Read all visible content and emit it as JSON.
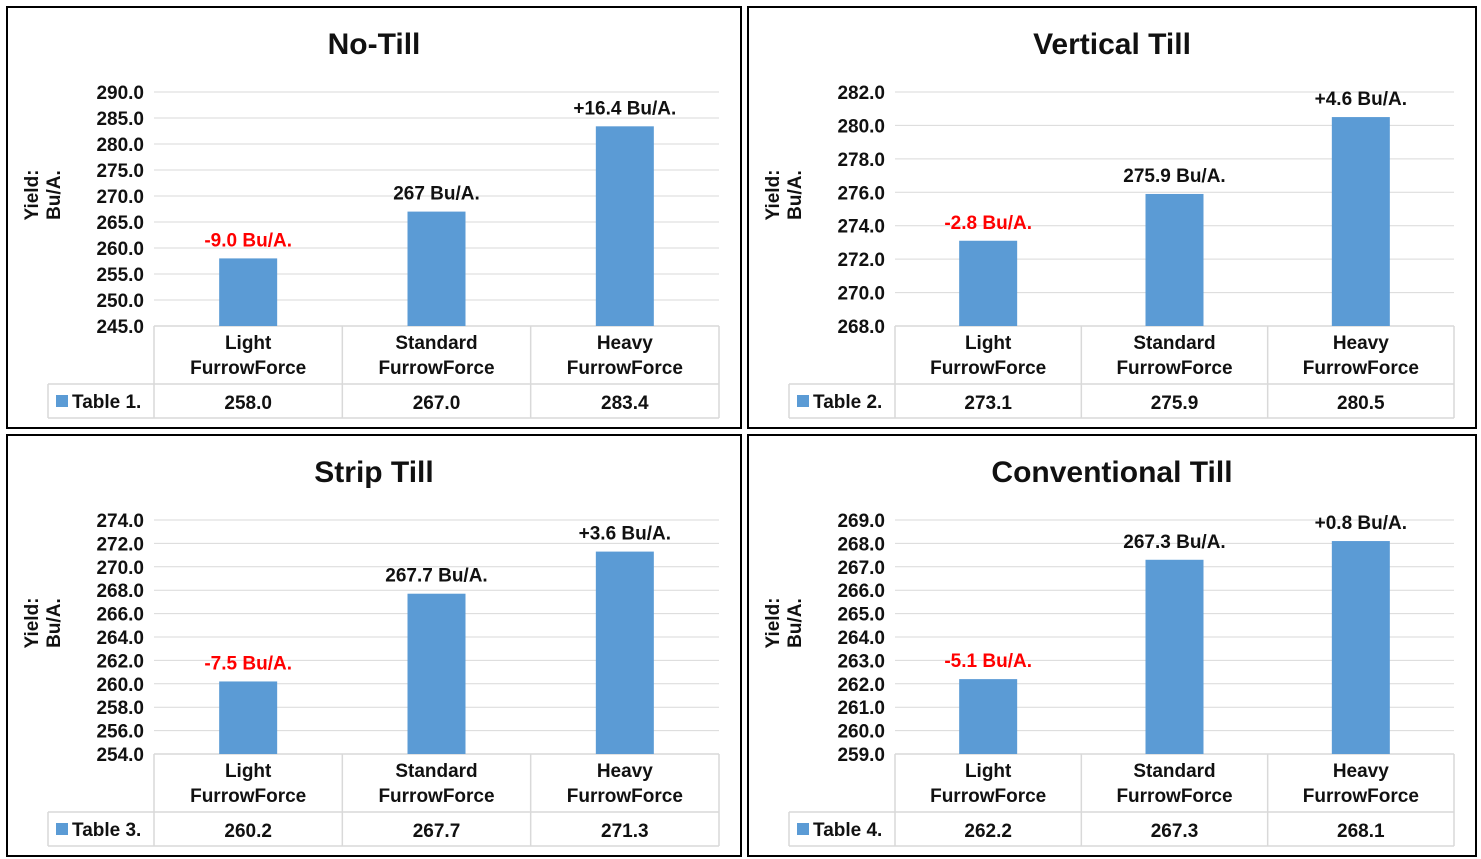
{
  "colors": {
    "bar": "#5b9bd5",
    "grid": "#d9d9d9",
    "negative_label": "#ff0000",
    "text": "#111111"
  },
  "chart_data": [
    {
      "type": "bar",
      "title": "No-Till",
      "ylabel": "Yield: Bu/A.",
      "categories": [
        [
          "Light",
          "FurrowForce"
        ],
        [
          "Standard",
          "FurrowForce"
        ],
        [
          "Heavy",
          "FurrowForce"
        ]
      ],
      "series": [
        {
          "name": "Table 1.",
          "values": [
            258.0,
            267.0,
            283.4
          ]
        }
      ],
      "table_values": [
        "258.0",
        "267.0",
        "283.4"
      ],
      "data_labels": [
        "-9.0 Bu/A.",
        "267 Bu/A.",
        "+16.4 Bu/A."
      ],
      "ylim": [
        245.0,
        290.0
      ],
      "yticks": [
        "245.0",
        "250.0",
        "255.0",
        "260.0",
        "265.0",
        "270.0",
        "275.0",
        "280.0",
        "285.0",
        "290.0"
      ],
      "grid": true,
      "legend": "data-table"
    },
    {
      "type": "bar",
      "title": "Vertical Till",
      "ylabel": "Yield: Bu/A.",
      "categories": [
        [
          "Light",
          "FurrowForce"
        ],
        [
          "Standard",
          "FurrowForce"
        ],
        [
          "Heavy",
          "FurrowForce"
        ]
      ],
      "series": [
        {
          "name": "Table 2.",
          "values": [
            273.1,
            275.9,
            280.5
          ]
        }
      ],
      "table_values": [
        "273.1",
        "275.9",
        "280.5"
      ],
      "data_labels": [
        "-2.8 Bu/A.",
        "275.9 Bu/A.",
        "+4.6 Bu/A."
      ],
      "ylim": [
        268.0,
        282.0
      ],
      "yticks": [
        "268.0",
        "270.0",
        "272.0",
        "274.0",
        "276.0",
        "278.0",
        "280.0",
        "282.0"
      ],
      "grid": true,
      "legend": "data-table"
    },
    {
      "type": "bar",
      "title": "Strip Till",
      "ylabel": "Yield: Bu/A.",
      "categories": [
        [
          "Light",
          "FurrowForce"
        ],
        [
          "Standard",
          "FurrowForce"
        ],
        [
          "Heavy",
          "FurrowForce"
        ]
      ],
      "series": [
        {
          "name": "Table 3.",
          "values": [
            260.2,
            267.7,
            271.3
          ]
        }
      ],
      "table_values": [
        "260.2",
        "267.7",
        "271.3"
      ],
      "data_labels": [
        "-7.5 Bu/A.",
        "267.7 Bu/A.",
        "+3.6 Bu/A."
      ],
      "ylim": [
        254.0,
        274.0
      ],
      "yticks": [
        "254.0",
        "256.0",
        "258.0",
        "260.0",
        "262.0",
        "264.0",
        "266.0",
        "268.0",
        "270.0",
        "272.0",
        "274.0"
      ],
      "grid": true,
      "legend": "data-table"
    },
    {
      "type": "bar",
      "title": "Conventional Till",
      "ylabel": "Yield: Bu/A.",
      "categories": [
        [
          "Light",
          "FurrowForce"
        ],
        [
          "Standard",
          "FurrowForce"
        ],
        [
          "Heavy",
          "FurrowForce"
        ]
      ],
      "series": [
        {
          "name": "Table 4.",
          "values": [
            262.2,
            267.3,
            268.1
          ]
        }
      ],
      "table_values": [
        "262.2",
        "267.3",
        "268.1"
      ],
      "data_labels": [
        "-5.1 Bu/A.",
        "267.3 Bu/A.",
        "+0.8 Bu/A."
      ],
      "ylim": [
        259.0,
        269.0
      ],
      "yticks": [
        "259.0",
        "260.0",
        "261.0",
        "262.0",
        "263.0",
        "264.0",
        "265.0",
        "266.0",
        "267.0",
        "268.0",
        "269.0"
      ],
      "grid": true,
      "legend": "data-table"
    }
  ]
}
